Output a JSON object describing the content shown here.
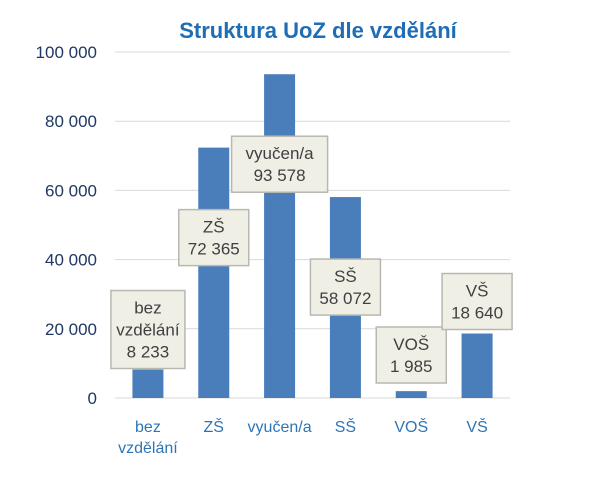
{
  "chart_data": {
    "type": "bar",
    "title": "Struktura UoZ dle vzdělání",
    "categories": [
      "bez vzdělání",
      "ZŠ",
      "vyučen/a",
      "SŠ",
      "VOŠ",
      "VŠ"
    ],
    "category_lines": [
      [
        "bez",
        "vzdělání"
      ],
      [
        "ZŠ"
      ],
      [
        "vyučen/a"
      ],
      [
        "SŠ"
      ],
      [
        "VOŠ"
      ],
      [
        "VŠ"
      ]
    ],
    "values": [
      8233,
      72365,
      93578,
      58072,
      1985,
      18640
    ],
    "value_labels": [
      "8 233",
      "72 365",
      "93 578",
      "58 072",
      "1 985",
      "18 640"
    ],
    "data_label_names": [
      [
        "bez",
        "vzdělání"
      ],
      [
        "ZŠ"
      ],
      [
        "vyučen/a"
      ],
      [
        "SŠ"
      ],
      [
        "VOŠ"
      ],
      [
        "VŠ"
      ]
    ],
    "ylim": [
      0,
      100000
    ],
    "yticks": [
      0,
      20000,
      40000,
      60000,
      80000,
      100000
    ],
    "ytick_labels": [
      "0",
      "20 000",
      "40 000",
      "60 000",
      "80 000",
      "100 000"
    ],
    "xlabel": "",
    "ylabel": "",
    "grid": true,
    "legend": "none"
  },
  "colors": {
    "bar": "#4a7ebb",
    "title": "#1f6db5",
    "axis_text": "#1f3864",
    "category_text": "#2e75b6",
    "grid": "#d9d9d9",
    "label_fill": "#efefe6",
    "label_border": "#b8b8b0",
    "label_text": "#404040"
  }
}
